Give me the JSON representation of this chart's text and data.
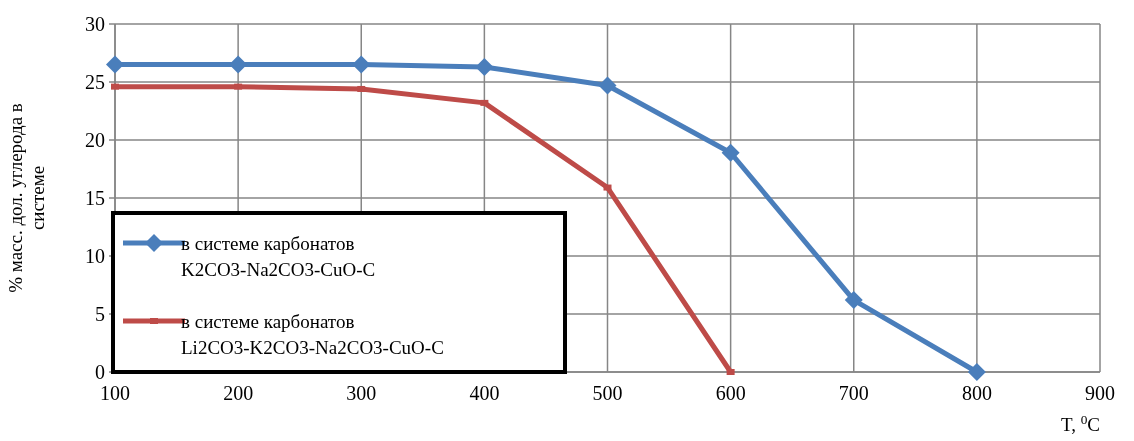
{
  "chart_data": {
    "type": "line",
    "xlabel": "T, $^{0}$C",
    "ylabel": "% масс. дол. углерода в системе",
    "x": [
      100,
      200,
      300,
      400,
      500,
      600,
      700,
      800
    ],
    "series": [
      {
        "name": "в системе карбонатов K2CO3-Na2CO3-CuO-C",
        "color": "#4a7ebb",
        "marker": "diamond",
        "values": [
          26.5,
          26.5,
          26.5,
          26.3,
          24.7,
          18.9,
          6.2,
          0
        ]
      },
      {
        "name": "в системе карбонатов Li2CO3-K2CO3-Na2CO3-CuO-C",
        "color": "#be4b48",
        "marker": "square",
        "values": [
          24.6,
          24.6,
          24.4,
          23.2,
          15.9,
          0,
          null,
          null
        ]
      }
    ],
    "xlim": [
      100,
      900
    ],
    "xticks": [
      100,
      200,
      300,
      400,
      500,
      600,
      700,
      800,
      900
    ],
    "ylim": [
      0,
      30
    ],
    "yticks": [
      0,
      5,
      10,
      15,
      20,
      25,
      30
    ],
    "grid": true,
    "legend": "bottom left",
    "line_style": "solid"
  }
}
